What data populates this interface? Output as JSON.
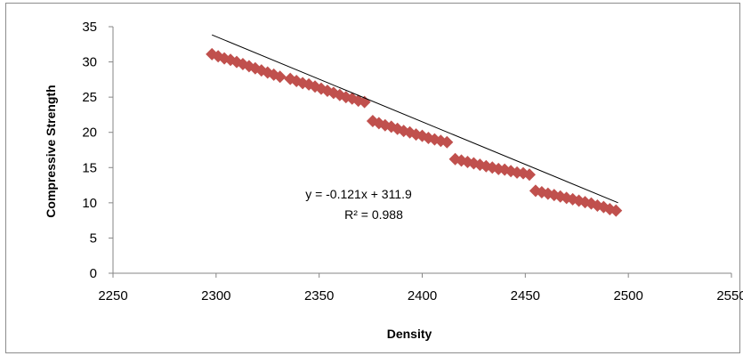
{
  "chart_data": {
    "type": "scatter",
    "title": "",
    "xlabel": "Density",
    "ylabel": "Compressive Strength",
    "xlim": [
      2250,
      2550
    ],
    "ylim": [
      0,
      35
    ],
    "x_ticks": [
      2250,
      2300,
      2350,
      2400,
      2450,
      2500,
      2550
    ],
    "y_ticks": [
      0,
      5,
      10,
      15,
      20,
      25,
      30,
      35
    ],
    "grid": false,
    "legend": "none",
    "marker": "diamond",
    "marker_color": "#c0504d",
    "trendline": {
      "type": "linear",
      "slope": -0.121,
      "intercept": 311.9,
      "x_range": [
        2298,
        2495
      ],
      "color": "#000000",
      "equation_label": "y = -0.121x + 311.9",
      "r2_label": "R² = 0.988"
    },
    "series": [
      {
        "points": [
          [
            2298,
            31.1
          ],
          [
            2301,
            30.8
          ],
          [
            2304,
            30.5
          ],
          [
            2307,
            30.3
          ],
          [
            2310,
            30.0
          ],
          [
            2313,
            29.7
          ],
          [
            2316,
            29.4
          ],
          [
            2319,
            29.1
          ],
          [
            2322,
            28.8
          ],
          [
            2325,
            28.5
          ],
          [
            2328,
            28.2
          ],
          [
            2331,
            27.9
          ],
          [
            2336,
            27.6
          ],
          [
            2339,
            27.3
          ],
          [
            2342,
            27.0
          ],
          [
            2345,
            26.8
          ],
          [
            2348,
            26.5
          ],
          [
            2351,
            26.2
          ],
          [
            2354,
            25.9
          ],
          [
            2357,
            25.6
          ],
          [
            2360,
            25.3
          ],
          [
            2363,
            25.0
          ],
          [
            2366,
            24.8
          ],
          [
            2369,
            24.5
          ],
          [
            2372,
            24.3
          ],
          [
            2376,
            21.6
          ],
          [
            2379,
            21.3
          ],
          [
            2382,
            21.0
          ],
          [
            2385,
            20.8
          ],
          [
            2388,
            20.5
          ],
          [
            2391,
            20.2
          ],
          [
            2394,
            20.0
          ],
          [
            2397,
            19.7
          ],
          [
            2400,
            19.5
          ],
          [
            2403,
            19.2
          ],
          [
            2406,
            19.0
          ],
          [
            2409,
            18.8
          ],
          [
            2412,
            18.6
          ],
          [
            2416,
            16.2
          ],
          [
            2419,
            16.0
          ],
          [
            2422,
            15.8
          ],
          [
            2425,
            15.6
          ],
          [
            2428,
            15.4
          ],
          [
            2431,
            15.2
          ],
          [
            2434,
            15.0
          ],
          [
            2437,
            14.8
          ],
          [
            2440,
            14.7
          ],
          [
            2443,
            14.5
          ],
          [
            2446,
            14.3
          ],
          [
            2449,
            14.2
          ],
          [
            2452,
            14.0
          ],
          [
            2455,
            11.7
          ],
          [
            2458,
            11.5
          ],
          [
            2461,
            11.3
          ],
          [
            2464,
            11.1
          ],
          [
            2467,
            10.9
          ],
          [
            2470,
            10.7
          ],
          [
            2473,
            10.5
          ],
          [
            2476,
            10.3
          ],
          [
            2479,
            10.1
          ],
          [
            2482,
            9.9
          ],
          [
            2485,
            9.6
          ],
          [
            2488,
            9.4
          ],
          [
            2491,
            9.1
          ],
          [
            2494,
            8.9
          ]
        ]
      }
    ]
  }
}
